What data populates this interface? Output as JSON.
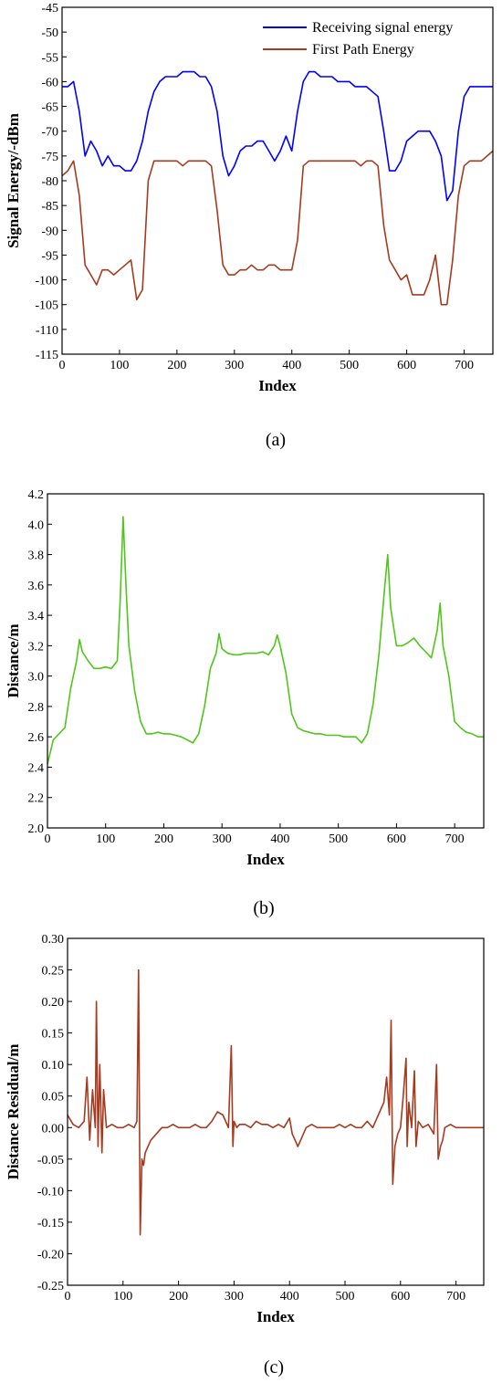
{
  "chart_data": [
    {
      "type": "line",
      "panel": "(a)",
      "xlabel": "Index",
      "ylabel": "Signal Energy/-dBm",
      "xlim": [
        0,
        750
      ],
      "ylim": [
        -115,
        -45
      ],
      "xticks": [
        0,
        100,
        200,
        300,
        400,
        500,
        600,
        700
      ],
      "yticks": [
        -45,
        -50,
        -55,
        -60,
        -65,
        -70,
        -75,
        -80,
        -85,
        -90,
        -95,
        -100,
        -105,
        -110,
        -115
      ],
      "legend_position": "top-right",
      "grid": false,
      "series": [
        {
          "name": "Receiving signal energy",
          "color": "#0000ff",
          "x": [
            0,
            10,
            20,
            30,
            40,
            50,
            60,
            70,
            80,
            90,
            100,
            110,
            120,
            130,
            140,
            150,
            160,
            170,
            180,
            190,
            200,
            210,
            220,
            230,
            240,
            250,
            260,
            270,
            280,
            290,
            300,
            310,
            320,
            330,
            340,
            350,
            360,
            370,
            380,
            390,
            400,
            410,
            420,
            430,
            440,
            450,
            460,
            470,
            480,
            490,
            500,
            510,
            520,
            530,
            540,
            550,
            560,
            570,
            580,
            590,
            600,
            610,
            620,
            630,
            640,
            650,
            660,
            670,
            680,
            690,
            700,
            710,
            720,
            730,
            740,
            750
          ],
          "y": [
            -61,
            -61,
            -60,
            -66,
            -75,
            -72,
            -74,
            -77,
            -75,
            -77,
            -77,
            -78,
            -78,
            -76,
            -72,
            -66,
            -62,
            -60,
            -59,
            -59,
            -59,
            -58,
            -58,
            -58,
            -59,
            -59,
            -61,
            -66,
            -75,
            -79,
            -77,
            -74,
            -73,
            -73,
            -72,
            -72,
            -74,
            -76,
            -74,
            -71,
            -74,
            -66,
            -60,
            -58,
            -58,
            -59,
            -59,
            -59,
            -60,
            -60,
            -60,
            -61,
            -61,
            -61,
            -62,
            -63,
            -70,
            -78,
            -78,
            -76,
            -72,
            -71,
            -70,
            -70,
            -70,
            -72,
            -75,
            -84,
            -82,
            -70,
            -63,
            -61,
            -61,
            -61,
            -61,
            -61
          ]
        },
        {
          "name": "First Path Energy",
          "color": "#a63a1e",
          "x": [
            0,
            10,
            20,
            30,
            40,
            50,
            60,
            70,
            80,
            90,
            100,
            110,
            120,
            130,
            140,
            150,
            160,
            170,
            180,
            190,
            200,
            210,
            220,
            230,
            240,
            250,
            260,
            270,
            280,
            290,
            300,
            310,
            320,
            330,
            340,
            350,
            360,
            370,
            380,
            390,
            400,
            410,
            420,
            430,
            440,
            450,
            460,
            470,
            480,
            490,
            500,
            510,
            520,
            530,
            540,
            550,
            560,
            570,
            580,
            590,
            600,
            610,
            620,
            630,
            640,
            650,
            660,
            670,
            680,
            690,
            700,
            710,
            720,
            730,
            740,
            750
          ],
          "y": [
            -79,
            -78,
            -76,
            -83,
            -97,
            -99,
            -101,
            -98,
            -98,
            -99,
            -98,
            -97,
            -96,
            -104,
            -102,
            -80,
            -76,
            -76,
            -76,
            -76,
            -76,
            -77,
            -76,
            -76,
            -76,
            -76,
            -77,
            -86,
            -97,
            -99,
            -99,
            -98,
            -98,
            -97,
            -98,
            -98,
            -97,
            -97,
            -98,
            -98,
            -98,
            -92,
            -77,
            -76,
            -76,
            -76,
            -76,
            -76,
            -76,
            -76,
            -76,
            -76,
            -77,
            -76,
            -76,
            -77,
            -89,
            -96,
            -98,
            -100,
            -99,
            -103,
            -103,
            -103,
            -100,
            -95,
            -105,
            -105,
            -96,
            -83,
            -77,
            -76,
            -76,
            -76,
            -75,
            -74
          ]
        }
      ]
    },
    {
      "type": "line",
      "panel": "(b)",
      "xlabel": "Index",
      "ylabel": "Distance/m",
      "xlim": [
        0,
        750
      ],
      "ylim": [
        2.0,
        4.2
      ],
      "xticks": [
        0,
        100,
        200,
        300,
        400,
        500,
        600,
        700
      ],
      "yticks": [
        4.2,
        4.0,
        3.8,
        3.6,
        3.4,
        3.2,
        3.0,
        2.8,
        2.6,
        2.4,
        2.2,
        2.0
      ],
      "grid": false,
      "series": [
        {
          "color": "#4fc61a",
          "x": [
            0,
            10,
            20,
            30,
            40,
            50,
            55,
            60,
            70,
            80,
            90,
            100,
            110,
            120,
            125,
            130,
            135,
            140,
            150,
            160,
            170,
            180,
            190,
            200,
            210,
            220,
            230,
            240,
            250,
            260,
            270,
            280,
            290,
            295,
            300,
            310,
            320,
            330,
            340,
            350,
            360,
            370,
            380,
            390,
            395,
            400,
            410,
            420,
            430,
            440,
            450,
            460,
            470,
            480,
            490,
            500,
            510,
            520,
            530,
            540,
            550,
            560,
            570,
            580,
            585,
            590,
            600,
            610,
            620,
            630,
            640,
            650,
            660,
            670,
            675,
            680,
            690,
            700,
            710,
            720,
            730,
            740,
            750
          ],
          "y": [
            2.42,
            2.58,
            2.62,
            2.66,
            2.92,
            3.1,
            3.24,
            3.16,
            3.1,
            3.05,
            3.05,
            3.06,
            3.05,
            3.1,
            3.5,
            4.05,
            3.6,
            3.2,
            2.9,
            2.7,
            2.62,
            2.62,
            2.63,
            2.62,
            2.62,
            2.61,
            2.6,
            2.58,
            2.56,
            2.62,
            2.8,
            3.05,
            3.15,
            3.28,
            3.18,
            3.15,
            3.14,
            3.14,
            3.15,
            3.15,
            3.15,
            3.16,
            3.14,
            3.2,
            3.27,
            3.2,
            3.02,
            2.75,
            2.66,
            2.64,
            2.63,
            2.62,
            2.62,
            2.61,
            2.61,
            2.61,
            2.6,
            2.6,
            2.6,
            2.56,
            2.62,
            2.82,
            3.15,
            3.6,
            3.8,
            3.45,
            3.2,
            3.2,
            3.22,
            3.25,
            3.2,
            3.16,
            3.12,
            3.3,
            3.48,
            3.2,
            3.0,
            2.7,
            2.66,
            2.63,
            2.62,
            2.6,
            2.6
          ]
        }
      ]
    },
    {
      "type": "line",
      "panel": "(c)",
      "xlabel": "Index",
      "ylabel": "Distance Residual/m",
      "xlim": [
        0,
        750
      ],
      "ylim": [
        -0.25,
        0.3
      ],
      "xticks": [
        0,
        100,
        200,
        300,
        400,
        500,
        600,
        700
      ],
      "yticks": [
        0.3,
        0.25,
        0.2,
        0.15,
        0.1,
        0.05,
        0.0,
        -0.05,
        -0.1,
        -0.15,
        -0.2,
        -0.25
      ],
      "grid": false,
      "series": [
        {
          "color": "#a63a1e",
          "x": [
            0,
            10,
            20,
            30,
            35,
            40,
            45,
            50,
            52,
            55,
            58,
            62,
            65,
            70,
            80,
            90,
            100,
            110,
            120,
            125,
            128,
            131,
            134,
            137,
            140,
            150,
            160,
            170,
            180,
            190,
            200,
            210,
            220,
            230,
            240,
            250,
            260,
            270,
            280,
            290,
            295,
            298,
            300,
            305,
            310,
            320,
            330,
            340,
            350,
            360,
            370,
            380,
            390,
            400,
            405,
            410,
            415,
            420,
            430,
            440,
            450,
            460,
            470,
            480,
            490,
            500,
            510,
            520,
            530,
            540,
            550,
            560,
            570,
            575,
            580,
            583,
            586,
            590,
            595,
            600,
            605,
            610,
            612,
            615,
            620,
            625,
            628,
            632,
            640,
            650,
            660,
            665,
            668,
            672,
            676,
            680,
            690,
            700,
            710,
            720,
            730,
            740,
            750
          ],
          "y": [
            0.02,
            0.005,
            0.0,
            0.01,
            0.08,
            -0.02,
            0.06,
            0.0,
            0.2,
            -0.03,
            0.1,
            -0.04,
            0.06,
            0.0,
            0.005,
            0.0,
            0.0,
            0.005,
            0.0,
            0.01,
            0.25,
            -0.17,
            -0.05,
            -0.06,
            -0.04,
            -0.02,
            -0.01,
            0.0,
            0.0,
            0.005,
            0.0,
            0.0,
            0.0,
            0.005,
            0.0,
            0.0,
            0.01,
            0.025,
            0.02,
            0.0,
            0.13,
            -0.03,
            0.01,
            0.0,
            0.005,
            0.005,
            0.0,
            0.01,
            0.005,
            0.005,
            0.0,
            0.005,
            0.0,
            0.015,
            -0.01,
            -0.02,
            -0.03,
            -0.02,
            0.0,
            0.005,
            0.0,
            0.0,
            0.0,
            0.0,
            0.005,
            0.0,
            0.005,
            0.0,
            0.0,
            0.01,
            0.0,
            0.02,
            0.04,
            0.08,
            0.02,
            0.17,
            -0.09,
            -0.03,
            -0.01,
            0.0,
            0.05,
            0.11,
            -0.03,
            0.04,
            0.0,
            0.09,
            -0.03,
            0.01,
            0.0,
            0.005,
            -0.01,
            0.1,
            -0.05,
            -0.03,
            -0.02,
            0.0,
            0.005,
            0.0,
            0.0,
            0.0,
            0.0,
            0.0,
            0.0
          ]
        }
      ]
    }
  ],
  "captions": [
    "(a)",
    "(b)",
    "(c)"
  ]
}
